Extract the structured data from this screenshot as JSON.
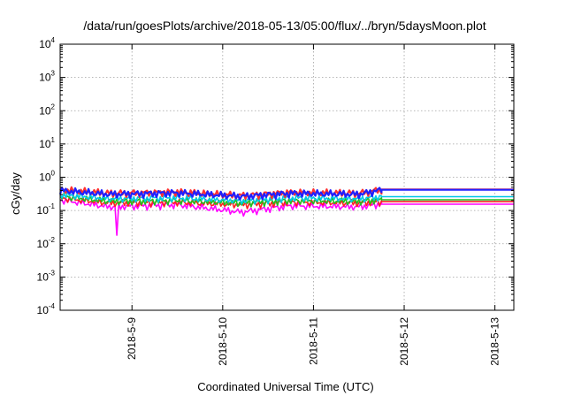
{
  "chart_data": {
    "type": "line",
    "title": "/data/run/goesPlots/archive/2018-05-13/05:00/flux/../bryn/5daysMoon.plot",
    "xlabel": "Coordinated Universal Time (UTC)",
    "ylabel": "cGy/day",
    "y_scale": "log",
    "ylim": [
      0.0001,
      10000
    ],
    "y_ticks": [
      {
        "base": "10",
        "exp": "-4",
        "value": 0.0001
      },
      {
        "base": "10",
        "exp": "-3",
        "value": 0.001
      },
      {
        "base": "10",
        "exp": "-2",
        "value": 0.01
      },
      {
        "base": "10",
        "exp": "-1",
        "value": 0.1
      },
      {
        "base": "10",
        "exp": "0",
        "value": 1
      },
      {
        "base": "10",
        "exp": "1",
        "value": 10
      },
      {
        "base": "10",
        "exp": "2",
        "value": 100
      },
      {
        "base": "10",
        "exp": "3",
        "value": 1000
      },
      {
        "base": "10",
        "exp": "4",
        "value": 10000
      }
    ],
    "x_range": [
      "2018-05-08 05:00",
      "2018-05-13 05:00"
    ],
    "x_ticks": [
      "2018-5-9",
      "2018-5-10",
      "2018-5-11",
      "2018-5-12",
      "2018-5-13"
    ],
    "x_tick_dates": [
      "2018-05-09 00:00",
      "2018-05-10 00:00",
      "2018-05-11 00:00",
      "2018-05-12 00:00",
      "2018-05-13 00:00"
    ],
    "grid": true,
    "legend": "none",
    "series": [
      {
        "color": "#ff00ff",
        "data_end": "2018-05-11 18:00",
        "flat_value": 0.155,
        "min_spike": {
          "x": "2018-05-08 20:00",
          "y": 0.018
        },
        "points": [
          [
            "2018-05-08 05:00",
            0.21
          ],
          [
            "2018-05-08 18:00",
            0.13
          ],
          [
            "2018-05-09 12:00",
            0.15
          ],
          [
            "2018-05-10 05:00",
            0.09
          ],
          [
            "2018-05-10 18:00",
            0.14
          ],
          [
            "2018-05-11 12:00",
            0.13
          ],
          [
            "2018-05-11 18:00",
            0.16
          ]
        ]
      },
      {
        "color": "#ff2020",
        "data_end": "2018-05-11 18:00",
        "flat_value": 0.185,
        "points": [
          [
            "2018-05-08 05:00",
            0.24
          ],
          [
            "2018-05-08 18:00",
            0.17
          ],
          [
            "2018-05-09 12:00",
            0.18
          ],
          [
            "2018-05-10 05:00",
            0.15
          ],
          [
            "2018-05-10 18:00",
            0.18
          ],
          [
            "2018-05-11 12:00",
            0.17
          ],
          [
            "2018-05-11 18:00",
            0.185
          ]
        ]
      },
      {
        "color": "#20c020",
        "data_end": "2018-05-11 18:00",
        "flat_value": 0.21,
        "points": [
          [
            "2018-05-08 05:00",
            0.27
          ],
          [
            "2018-05-08 18:00",
            0.19
          ],
          [
            "2018-05-09 12:00",
            0.2
          ],
          [
            "2018-05-10 05:00",
            0.17
          ],
          [
            "2018-05-10 18:00",
            0.2
          ],
          [
            "2018-05-11 12:00",
            0.19
          ],
          [
            "2018-05-11 18:00",
            0.21
          ]
        ]
      },
      {
        "color": "#00c8e8",
        "data_end": "2018-05-11 18:00",
        "flat_value": 0.26,
        "points": [
          [
            "2018-05-08 05:00",
            0.3
          ],
          [
            "2018-05-08 18:00",
            0.23
          ],
          [
            "2018-05-09 12:00",
            0.24
          ],
          [
            "2018-05-10 05:00",
            0.2
          ],
          [
            "2018-05-10 18:00",
            0.24
          ],
          [
            "2018-05-11 12:00",
            0.23
          ],
          [
            "2018-05-11 18:00",
            0.26
          ]
        ]
      },
      {
        "color": "#ff3030",
        "data_end": "2018-05-11 18:00",
        "flat_value": 0.43,
        "points": [
          [
            "2018-05-08 05:00",
            0.42
          ],
          [
            "2018-05-08 18:00",
            0.33
          ],
          [
            "2018-05-09 12:00",
            0.36
          ],
          [
            "2018-05-10 05:00",
            0.28
          ],
          [
            "2018-05-10 18:00",
            0.35
          ],
          [
            "2018-05-11 12:00",
            0.33
          ],
          [
            "2018-05-11 18:00",
            0.43
          ]
        ]
      },
      {
        "color": "#2020ff",
        "data_end": "2018-05-11 18:00",
        "flat_value": 0.42,
        "points": [
          [
            "2018-05-08 05:00",
            0.4
          ],
          [
            "2018-05-08 18:00",
            0.31
          ],
          [
            "2018-05-09 12:00",
            0.34
          ],
          [
            "2018-05-10 05:00",
            0.27
          ],
          [
            "2018-05-10 18:00",
            0.33
          ],
          [
            "2018-05-11 12:00",
            0.31
          ],
          [
            "2018-05-11 18:00",
            0.42
          ]
        ]
      }
    ]
  }
}
